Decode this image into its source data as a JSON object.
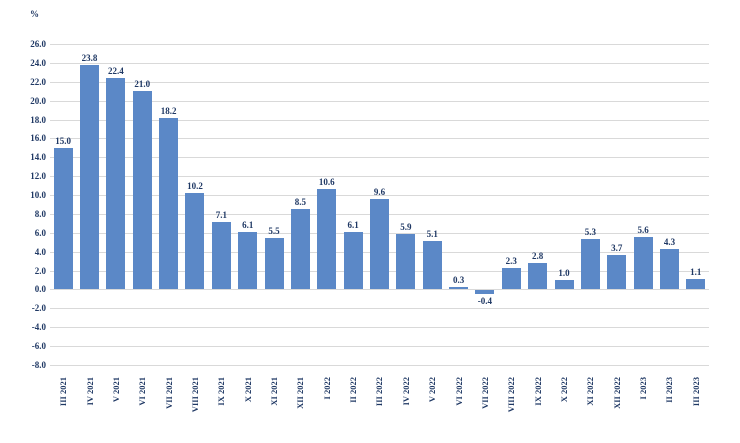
{
  "chart_data": {
    "type": "bar",
    "title": "",
    "unit_label": "%",
    "categories": [
      "III 2021",
      "IV 2021",
      "V 2021",
      "VI 2021",
      "VII 2021",
      "VIII 2021",
      "IX 2021",
      "X 2021",
      "XI 2021",
      "XII 2021",
      "I 2022",
      "II 2022",
      "III 2022",
      "IV 2022",
      "V 2022",
      "VI 2022",
      "VII 2022",
      "VIII 2022",
      "IX 2022",
      "X 2022",
      "XI 2022",
      "XII 2022",
      "I 2023",
      "II 2023",
      "III 2023"
    ],
    "values": [
      15.0,
      23.8,
      22.4,
      21.0,
      18.2,
      10.2,
      7.1,
      6.1,
      5.5,
      8.5,
      10.6,
      6.1,
      9.6,
      5.9,
      5.1,
      0.3,
      -0.4,
      2.3,
      2.8,
      1.0,
      5.3,
      3.7,
      5.6,
      4.3,
      1.1
    ],
    "ylim": [
      -8.0,
      26.0
    ],
    "ytick_step": 2.0,
    "ytick_decimals": 1,
    "value_label_decimals": 1,
    "grid": true,
    "legend": "none",
    "x_labels_rotated_degrees": 90,
    "colors": {
      "bar": "#5b88c7",
      "grid": "#d9d9d9",
      "axis_text": "#1f3864",
      "value_text": "#1f3864",
      "background": "#ffffff"
    }
  }
}
